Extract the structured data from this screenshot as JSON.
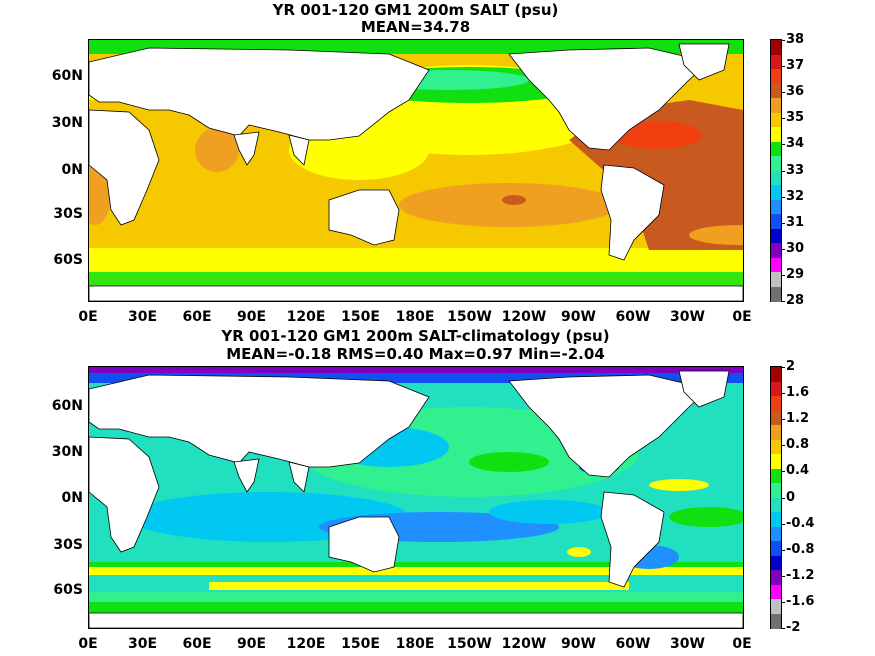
{
  "panel1": {
    "title_line1": "YR 001-120 GM1 200m SALT (psu)",
    "title_line2": "MEAN=34.78",
    "y_labels": [
      "60N",
      "30N",
      "0N",
      "30S",
      "60S"
    ],
    "x_labels": [
      "0E",
      "30E",
      "60E",
      "90E",
      "120E",
      "150E",
      "180E",
      "150W",
      "120W",
      "90W",
      "60W",
      "30W",
      "0E"
    ],
    "colorbar_labels": [
      "38",
      "37",
      "36",
      "35",
      "34",
      "33",
      "32",
      "31",
      "30",
      "29",
      "28"
    ],
    "colorbar_colors": [
      "#a00000",
      "#d81818",
      "#f04010",
      "#c85a20",
      "#f0a020",
      "#f5c800",
      "#ffff00",
      "#10e010",
      "#30f090",
      "#20e0c0",
      "#00c8f0",
      "#2090ff",
      "#1050f0",
      "#0000d0",
      "#8000c0",
      "#ff00ff",
      "#c0c0c0",
      "#707070"
    ]
  },
  "panel2": {
    "title_line1": "YR 001-120 GM1 200m SALT-climatology (psu)",
    "title_line2": "MEAN=-0.18   RMS=0.40   Max=0.97   Min=-2.04",
    "y_labels": [
      "60N",
      "30N",
      "0N",
      "30S",
      "60S"
    ],
    "x_labels": [
      "0E",
      "30E",
      "60E",
      "90E",
      "120E",
      "150E",
      "180E",
      "150W",
      "120W",
      "90W",
      "60W",
      "30W",
      "0E"
    ],
    "colorbar_labels": [
      "2",
      "1.6",
      "1.2",
      "0.8",
      "0.4",
      "0",
      "-0.4",
      "-0.8",
      "-1.2",
      "-1.6",
      "-2"
    ],
    "colorbar_colors": [
      "#a00000",
      "#d81818",
      "#f04010",
      "#c85a20",
      "#f0a020",
      "#f5c800",
      "#ffff00",
      "#10e010",
      "#30f090",
      "#20e0c0",
      "#00c8f0",
      "#2090ff",
      "#1050f0",
      "#0000d0",
      "#8000c0",
      "#ff00ff",
      "#c0c0c0",
      "#707070"
    ]
  }
}
